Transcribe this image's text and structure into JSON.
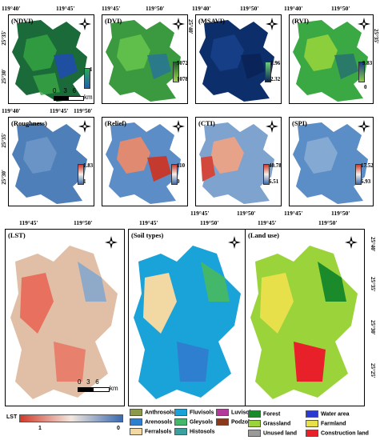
{
  "coords": {
    "top_lon": [
      "119°40'",
      "119°45'",
      "119°50'"
    ],
    "mid_lon": [
      "119°45'",
      "119°50'"
    ],
    "bot_lon": [
      "119°40'",
      "119°45'",
      "119°50'"
    ],
    "lat": [
      "25°35'",
      "25°30'",
      "25°25'"
    ],
    "lat2": [
      "25°40'",
      "25°35'",
      "25°30'",
      "25°25'"
    ]
  },
  "panels": [
    {
      "title": "(NDVI)",
      "legend_max": "1",
      "legend_min": "",
      "colors": [
        "#1a6a3a",
        "#2f9a3f",
        "#1f4fa0"
      ]
    },
    {
      "title": "(DVI)",
      "legend_max": "5072",
      "legend_min": "1078",
      "colors": [
        "#3b9a3f",
        "#5fbf4a",
        "#2a7a8a"
      ]
    },
    {
      "title": "(MSAVI)",
      "legend_max": "1.96",
      "legend_min": "2.32",
      "colors": [
        "#0c2f6b",
        "#163e86",
        "#0a2358"
      ]
    },
    {
      "title": "(RVI)",
      "legend_max": "9.83",
      "legend_min": "0",
      "colors": [
        "#3aa843",
        "#8ccf3c",
        "#2a7a6a"
      ]
    },
    {
      "title": "(Roughness)",
      "legend_max": "1.83",
      "legend_min": "1",
      "colors": [
        "#4f7fb8",
        "#6a93c6",
        "#c96b5e"
      ]
    },
    {
      "title": "(Relief)",
      "legend_max": "110",
      "legend_min": "0",
      "colors": [
        "#5d8dc6",
        "#e08a72",
        "#c43a2e"
      ]
    },
    {
      "title": "(CTI)",
      "legend_max": "40.78",
      "legend_min": "6.51",
      "colors": [
        "#7fa3cf",
        "#e7a38a",
        "#d2483c"
      ]
    },
    {
      "title": "(SPI)",
      "legend_max": "17.52",
      "legend_min": "6.93",
      "colors": [
        "#5b8ec7",
        "#84a9d3",
        "#d67a6a"
      ]
    },
    {
      "title": "(LST)",
      "colors": [
        "#e0bfa6",
        "#e8705e",
        "#8fa9c9"
      ]
    },
    {
      "title": "(Soil types)",
      "colors": [
        "#1aa3d9",
        "#f2d9a3",
        "#43b86b"
      ]
    },
    {
      "title": "(Land use)",
      "colors": [
        "#9bd33a",
        "#e8e04a",
        "#e8202a"
      ]
    }
  ],
  "scale": {
    "ticks": [
      "0",
      "3",
      "6"
    ],
    "unit": "km"
  },
  "lst_legend": {
    "label": "LST",
    "max": "1",
    "min": "0"
  },
  "soil_legend": [
    {
      "label": "Anthrosols",
      "color": "#8a9a4a"
    },
    {
      "label": "Fluvisols",
      "color": "#1aa3d9"
    },
    {
      "label": "Luvisols",
      "color": "#b33a9a"
    },
    {
      "label": "Arenosols",
      "color": "#2f7fd0"
    },
    {
      "label": "Gleysols",
      "color": "#43b86b"
    },
    {
      "label": "Podzols",
      "color": "#8a3a1a"
    },
    {
      "label": "Ferralsols",
      "color": "#f2d9a3"
    },
    {
      "label": "Histosols",
      "color": "#3aa0a0"
    }
  ],
  "landuse_legend": [
    {
      "label": "Forest",
      "color": "#1a8a2a"
    },
    {
      "label": "Water area",
      "color": "#2a3ad0"
    },
    {
      "label": "Grassland",
      "color": "#9bd33a"
    },
    {
      "label": "Farmland",
      "color": "#e8e04a"
    },
    {
      "label": "Unused land",
      "color": "#9a9a9a"
    },
    {
      "label": "Construction land",
      "color": "#e8202a"
    }
  ]
}
